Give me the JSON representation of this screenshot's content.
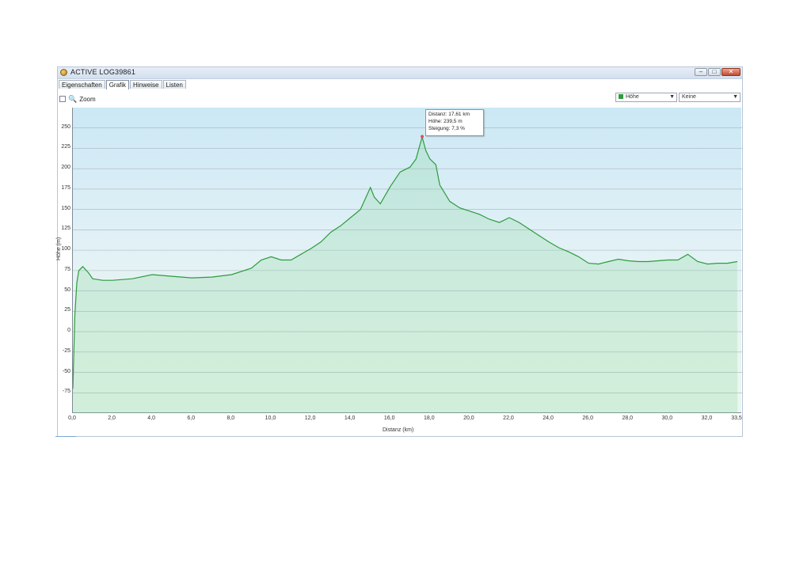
{
  "window": {
    "title": "ACTIVE LOG39861",
    "buttons": {
      "minimize": "–",
      "maximize": "□",
      "close": "✕"
    }
  },
  "tabs": [
    {
      "label": "Eigenschaften",
      "active": false
    },
    {
      "label": "Grafik",
      "active": true
    },
    {
      "label": "Hinweise",
      "active": false
    },
    {
      "label": "Listen",
      "active": false
    }
  ],
  "toolbar": {
    "zoom_label": "Zoom",
    "zoom_icon": "magnifier-icon",
    "series_select": "Höhe",
    "second_select": "Keine"
  },
  "colors": {
    "series": "#2e9b3c",
    "plot_top": "#cbe8f5",
    "plot_bottom": "#eaf6ef"
  },
  "tooltip": {
    "line1": "Distanz: 17,61 km",
    "line2": "Höhe: 239,5 m",
    "line3": "Steigung: 7,3 %"
  },
  "chart_data": {
    "type": "area",
    "xlabel": "Distanz (km)",
    "ylabel": "Höhe (m)",
    "xlim": [
      0,
      33.5
    ],
    "ylim": [
      -100,
      275
    ],
    "grid": true,
    "xticks": [
      "0,0",
      "2,0",
      "4,0",
      "6,0",
      "8,0",
      "10,0",
      "12,0",
      "14,0",
      "16,0",
      "18,0",
      "20,0",
      "22,0",
      "24,0",
      "26,0",
      "28,0",
      "30,0",
      "32,0",
      "33,5"
    ],
    "xtick_values": [
      0,
      2,
      4,
      6,
      8,
      10,
      12,
      14,
      16,
      18,
      20,
      22,
      24,
      26,
      28,
      30,
      32,
      33.5
    ],
    "yticks": [
      "250",
      "225",
      "200",
      "175",
      "150",
      "125",
      "100",
      "75",
      "50",
      "25",
      "0",
      "-25",
      "-50",
      "-75"
    ],
    "ytick_values": [
      250,
      225,
      200,
      175,
      150,
      125,
      100,
      75,
      50,
      25,
      0,
      -25,
      -50,
      -75
    ],
    "series": [
      {
        "x": [
          0,
          0.1,
          0.2,
          0.3,
          0.5,
          0.8,
          1.0,
          1.5,
          2.0,
          3.0,
          4.0,
          5.0,
          6.0,
          7.0,
          8.0,
          9.0,
          9.5,
          10.0,
          10.5,
          11.0,
          11.5,
          12.0,
          12.5,
          13.0,
          13.5,
          14.0,
          14.5,
          15.0,
          15.2,
          15.5,
          16.0,
          16.5,
          17.0,
          17.3,
          17.61,
          17.8,
          18.0,
          18.3,
          18.5,
          19.0,
          19.5,
          20.0,
          20.5,
          21.0,
          21.5,
          22.0,
          22.5,
          23.0,
          23.5,
          24.0,
          24.5,
          25.0,
          25.5,
          26.0,
          26.5,
          27.0,
          27.5,
          28.0,
          28.5,
          29.0,
          29.5,
          30.0,
          30.5,
          31.0,
          31.5,
          32.0,
          32.5,
          33.0,
          33.5
        ],
        "y": [
          -70,
          20,
          60,
          75,
          80,
          72,
          65,
          63,
          63,
          65,
          70,
          68,
          66,
          67,
          70,
          78,
          88,
          92,
          88,
          88,
          95,
          102,
          110,
          122,
          130,
          140,
          150,
          177,
          165,
          157,
          178,
          196,
          202,
          212,
          239,
          222,
          212,
          205,
          180,
          160,
          152,
          148,
          144,
          138,
          134,
          140,
          134,
          126,
          118,
          110,
          103,
          98,
          92,
          84,
          83,
          86,
          89,
          87,
          86,
          86,
          87,
          88,
          88,
          95,
          86,
          83,
          84,
          84,
          86
        ]
      }
    ]
  }
}
